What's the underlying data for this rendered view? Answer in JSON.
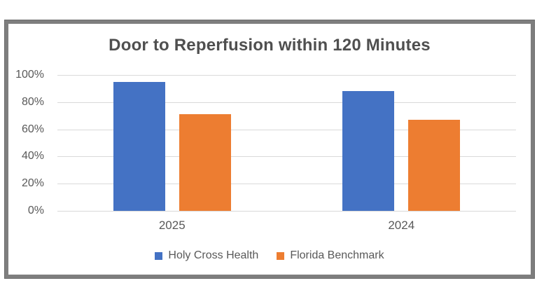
{
  "chart_data": {
    "type": "bar",
    "title": "Door to Reperfusion within 120 Minutes",
    "categories": [
      "2025",
      "2024"
    ],
    "series": [
      {
        "name": "Holy Cross Health",
        "color": "#4472C4",
        "values": [
          95,
          88
        ]
      },
      {
        "name": "Florida Benchmark",
        "color": "#ED7D31",
        "values": [
          71,
          67
        ]
      }
    ],
    "xlabel": "",
    "ylabel": "",
    "ylim": [
      0,
      100
    ],
    "yticks": [
      {
        "value": 100,
        "label": "100%"
      },
      {
        "value": 80,
        "label": "80%"
      },
      {
        "value": 60,
        "label": "60%"
      },
      {
        "value": 40,
        "label": "40%"
      },
      {
        "value": 20,
        "label": "20%"
      },
      {
        "value": 0,
        "label": "0%"
      }
    ],
    "grid": true,
    "legend_position": "bottom",
    "colors": {
      "grid": "#d9d9d9",
      "text": "#595959",
      "title": "#4f4f4f",
      "frame_border": "#7e7e7e",
      "background": "#ffffff"
    }
  }
}
